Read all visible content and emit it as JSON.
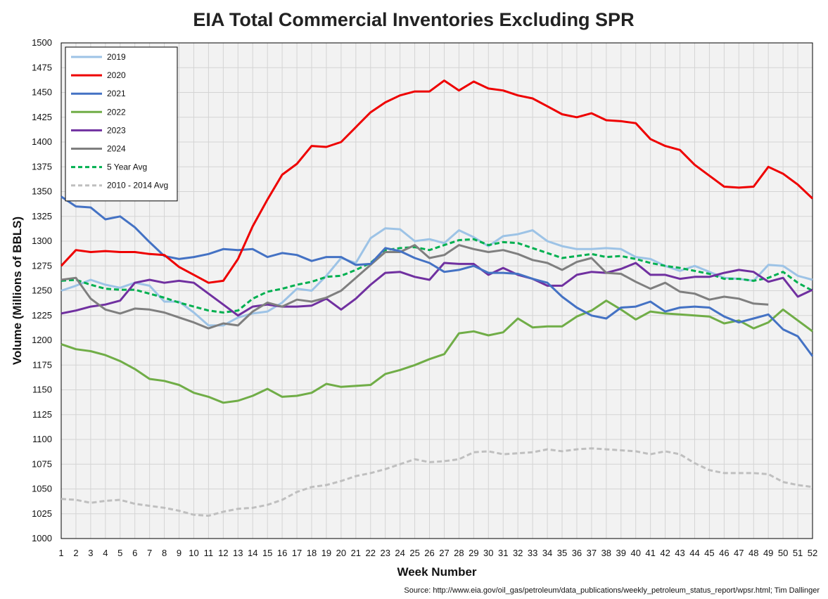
{
  "chart_data": {
    "type": "line",
    "title": "EIA Total Commercial Inventories Excluding SPR",
    "xlabel": "Week Number",
    "ylabel": "Volume (Millions of BBLS)",
    "source": "Source: http://www.eia.gov/oil_gas/petroleum/data_publications/weekly_petroleum_status_report/wpsr.html; Tim Dallinger",
    "xlim": [
      1,
      52
    ],
    "ylim": [
      1000,
      1500
    ],
    "ytick_step": 25,
    "grid": true,
    "legend_position": "top-left",
    "x": [
      1,
      2,
      3,
      4,
      5,
      6,
      7,
      8,
      9,
      10,
      11,
      12,
      13,
      14,
      15,
      16,
      17,
      18,
      19,
      20,
      21,
      22,
      23,
      24,
      25,
      26,
      27,
      28,
      29,
      30,
      31,
      32,
      33,
      34,
      35,
      36,
      37,
      38,
      39,
      40,
      41,
      42,
      43,
      44,
      45,
      46,
      47,
      48,
      49,
      50,
      51,
      52
    ],
    "series": [
      {
        "name": "2019",
        "color": "#9dc3e6",
        "dash": "solid",
        "values": [
          1250,
          1255,
          1261,
          1256,
          1253,
          1258,
          1255,
          1239,
          1239,
          1228,
          1215,
          1215,
          1223,
          1227,
          1229,
          1238,
          1252,
          1250,
          1265,
          1283,
          1278,
          1303,
          1313,
          1312,
          1300,
          1302,
          1298,
          1311,
          1304,
          1295,
          1305,
          1307,
          1311,
          1300,
          1295,
          1292,
          1292,
          1293,
          1292,
          1284,
          1282,
          1275,
          1270,
          1275,
          1269,
          1263,
          1262,
          1260,
          1276,
          1275,
          1265,
          1261
        ]
      },
      {
        "name": "2020",
        "color": "#ee0000",
        "dash": "solid",
        "values": [
          1275,
          1291,
          1289,
          1290,
          1289,
          1289,
          1287,
          1286,
          1274,
          1266,
          1258,
          1260,
          1282,
          1315,
          1342,
          1367,
          1378,
          1396,
          1395,
          1400,
          1415,
          1430,
          1440,
          1447,
          1451,
          1451,
          1462,
          1452,
          1461,
          1454,
          1452,
          1447,
          1444,
          1436,
          1428,
          1425,
          1429,
          1422,
          1421,
          1419,
          1403,
          1396,
          1392,
          1377,
          1366,
          1355,
          1354,
          1355,
          1375,
          1368,
          1357,
          1343
        ]
      },
      {
        "name": "2021",
        "color": "#4472c4",
        "dash": "solid",
        "values": [
          1345,
          1335,
          1334,
          1322,
          1325,
          1314,
          1299,
          1285,
          1282,
          1284,
          1287,
          1292,
          1291,
          1292,
          1284,
          1288,
          1286,
          1280,
          1284,
          1284,
          1276,
          1277,
          1293,
          1290,
          1283,
          1278,
          1269,
          1271,
          1275,
          1268,
          1268,
          1267,
          1262,
          1258,
          1244,
          1233,
          1225,
          1222,
          1233,
          1234,
          1239,
          1229,
          1233,
          1234,
          1233,
          1224,
          1218,
          1222,
          1226,
          1211,
          1204,
          1184
        ]
      },
      {
        "name": "2022",
        "color": "#70ad47",
        "dash": "solid",
        "values": [
          1196,
          1191,
          1189,
          1185,
          1179,
          1171,
          1161,
          1159,
          1155,
          1147,
          1143,
          1137,
          1139,
          1144,
          1151,
          1143,
          1144,
          1147,
          1156,
          1153,
          1154,
          1155,
          1166,
          1170,
          1175,
          1181,
          1186,
          1207,
          1209,
          1205,
          1208,
          1222,
          1213,
          1214,
          1214,
          1224,
          1230,
          1240,
          1231,
          1221,
          1229,
          1227,
          1226,
          1225,
          1224,
          1217,
          1220,
          1212,
          1218,
          1231,
          1220,
          1209
        ]
      },
      {
        "name": "2023",
        "color": "#7030a0",
        "dash": "solid",
        "values": [
          1227,
          1230,
          1234,
          1236,
          1240,
          1258,
          1261,
          1258,
          1260,
          1258,
          1247,
          1236,
          1225,
          1234,
          1236,
          1234,
          1234,
          1235,
          1242,
          1231,
          1242,
          1256,
          1268,
          1269,
          1264,
          1261,
          1278,
          1277,
          1277,
          1266,
          1273,
          1266,
          1262,
          1255,
          1255,
          1266,
          1269,
          1268,
          1272,
          1278,
          1266,
          1266,
          1262,
          1264,
          1264,
          1268,
          1271,
          1269,
          1259,
          1263,
          1244,
          1251
        ]
      },
      {
        "name": "2024",
        "color": "#7f7f7f",
        "dash": "solid",
        "values": [
          1261,
          1263,
          1242,
          1231,
          1227,
          1232,
          1231,
          1228,
          1223,
          1218,
          1212,
          1217,
          1215,
          1229,
          1238,
          1234,
          1241,
          1239,
          1243,
          1250,
          1263,
          1276,
          1289,
          1289,
          1296,
          1283,
          1286,
          1296,
          1292,
          1289,
          1291,
          1287,
          1281,
          1278,
          1271,
          1279,
          1283,
          1268,
          1267,
          1259,
          1252,
          1258,
          1249,
          1247,
          1241,
          1244,
          1242,
          1237,
          1236,
          null,
          null,
          null
        ]
      },
      {
        "name": "5 Year Avg",
        "color": "#00b050",
        "dash": "dash",
        "values": [
          1260,
          1261,
          1256,
          1252,
          1251,
          1251,
          1247,
          1243,
          1238,
          1234,
          1230,
          1228,
          1230,
          1242,
          1249,
          1252,
          1256,
          1259,
          1264,
          1265,
          1271,
          1278,
          1291,
          1293,
          1294,
          1291,
          1296,
          1301,
          1302,
          1296,
          1299,
          1298,
          1293,
          1288,
          1283,
          1285,
          1287,
          1284,
          1285,
          1282,
          1278,
          1275,
          1273,
          1270,
          1267,
          1262,
          1262,
          1260,
          1263,
          1269,
          1258,
          1250
        ]
      },
      {
        "name": "2010 - 2014 Avg",
        "color": "#bfbfbf",
        "dash": "dash",
        "values": [
          1040,
          1039,
          1036,
          1038,
          1039,
          1035,
          1033,
          1031,
          1028,
          1024,
          1023,
          1027,
          1030,
          1031,
          1034,
          1039,
          1047,
          1052,
          1054,
          1058,
          1063,
          1066,
          1070,
          1075,
          1080,
          1077,
          1078,
          1080,
          1087,
          1088,
          1085,
          1086,
          1087,
          1090,
          1088,
          1090,
          1091,
          1090,
          1089,
          1088,
          1085,
          1088,
          1085,
          1076,
          1069,
          1066,
          1066,
          1066,
          1065,
          1057,
          1054,
          1052
        ]
      }
    ]
  }
}
